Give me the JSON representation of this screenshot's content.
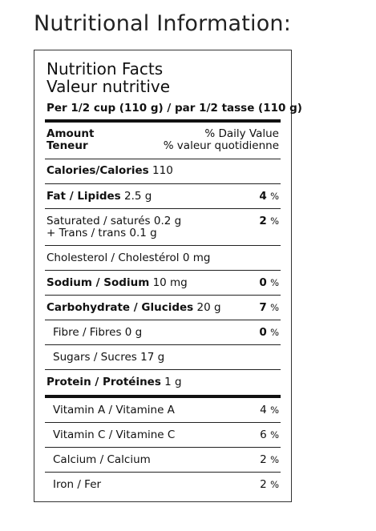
{
  "heading": "Nutritional Information:",
  "label": {
    "title_en": "Nutrition Facts",
    "title_fr": "Valeur nutritive",
    "serving": "Per 1/2 cup (110 g) / par 1/2 tasse (110 g)",
    "amount_en": "Amount",
    "amount_fr": "Teneur",
    "dv_en": "% Daily Value",
    "dv_fr": "% valeur quotidienne",
    "calories_label": "Calories/Calories",
    "calories_value": "110",
    "rows": [
      {
        "label": "Fat / Lipides",
        "amount": "2.5 g",
        "dv": "4",
        "pct": "%"
      },
      {
        "label": "Saturated / saturés",
        "amount": "0.2 g",
        "label2": "+ Trans / trans",
        "amount2": "0.1 g",
        "dv": "2",
        "pct": "%"
      },
      {
        "label": "Cholesterol / Cholestérol",
        "amount": "0 mg"
      },
      {
        "label": "Sodium / Sodium",
        "amount": "10 mg",
        "dv": "0",
        "pct": "%"
      },
      {
        "label": "Carbohydrate / Glucides",
        "amount": "20 g",
        "dv": "7",
        "pct": "%"
      },
      {
        "label": "Fibre / Fibres",
        "amount": "0 g",
        "dv": "0",
        "pct": "%"
      },
      {
        "label": "Sugars / Sucres",
        "amount": "17 g"
      },
      {
        "label": "Protein / Protéines",
        "amount": "1 g"
      },
      {
        "label": "Vitamin A / Vitamine A",
        "dv": "4",
        "pct": "%"
      },
      {
        "label": "Vitamin C / Vitamine C",
        "dv": "6",
        "pct": "%"
      },
      {
        "label": "Calcium / Calcium",
        "dv": "2",
        "pct": "%"
      },
      {
        "label": "Iron / Fer",
        "dv": "2",
        "pct": "%"
      }
    ]
  }
}
